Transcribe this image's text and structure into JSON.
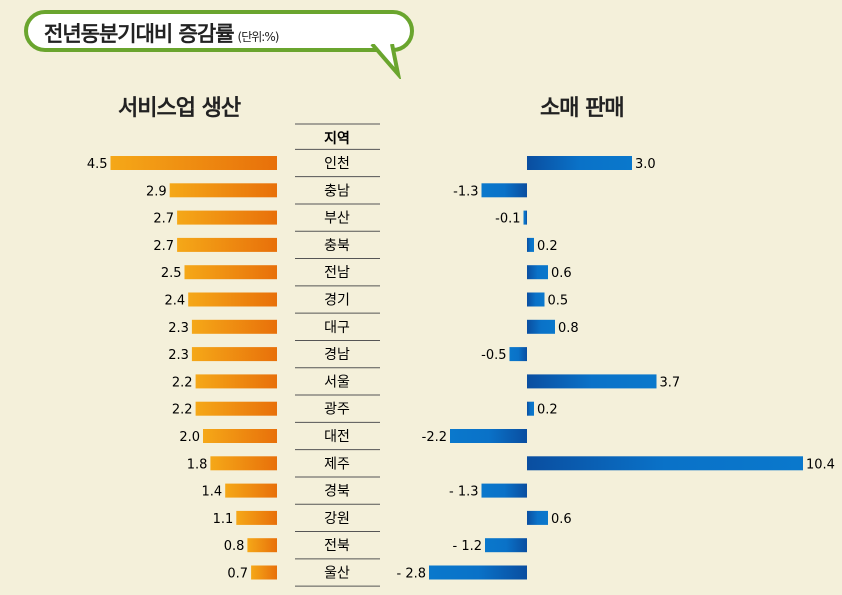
{
  "title": "전년동분기대비 증감률",
  "unit": "(단위:%)",
  "chart_data": [
    {
      "type": "bar",
      "orientation": "horizontal",
      "title": "서비스업 생산",
      "category_header": "지역",
      "categories": [
        "인천",
        "충남",
        "부산",
        "충북",
        "전남",
        "경기",
        "대구",
        "경남",
        "서울",
        "광주",
        "대전",
        "제주",
        "경북",
        "강원",
        "전북",
        "울산"
      ],
      "values": [
        4.5,
        2.9,
        2.7,
        2.7,
        2.5,
        2.4,
        2.3,
        2.3,
        2.2,
        2.2,
        2.0,
        1.8,
        1.4,
        1.1,
        0.8,
        0.7
      ],
      "labels": [
        "4.5",
        "2.9",
        "2.7",
        "2.7",
        "2.5",
        "2.4",
        "2.3",
        "2.3",
        "2.2",
        "2.2",
        "2.0",
        "1.8",
        "1.4",
        "1.1",
        "0.8",
        "0.7"
      ],
      "color": "#f09a10"
    },
    {
      "type": "bar",
      "orientation": "horizontal",
      "title": "소매 판매",
      "categories": [
        "인천",
        "충남",
        "부산",
        "충북",
        "전남",
        "경기",
        "대구",
        "경남",
        "서울",
        "광주",
        "대전",
        "제주",
        "경북",
        "강원",
        "전북",
        "울산"
      ],
      "values": [
        3.0,
        -1.3,
        -0.1,
        0.2,
        0.6,
        0.5,
        0.8,
        -0.5,
        3.7,
        0.2,
        -2.2,
        10.4,
        -1.3,
        0.6,
        -1.2,
        -2.8
      ],
      "labels": [
        "3.0",
        "-1.3",
        "-0.1",
        "0.2",
        "0.6",
        "0.5",
        "0.8",
        "-0.5",
        "3.7",
        "0.2",
        "-2.2",
        "10.4",
        "- 1.3",
        "0.6",
        "- 1.2",
        "- 2.8"
      ],
      "color": "#0a6cc0"
    }
  ]
}
